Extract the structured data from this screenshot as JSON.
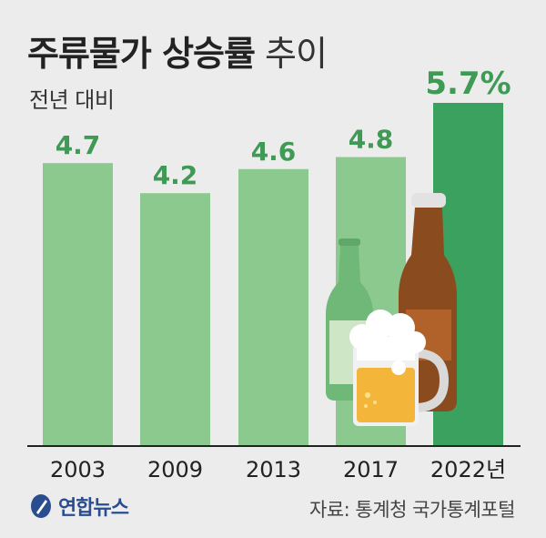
{
  "title_bold": "주류물가 상승률",
  "title_light": "추이",
  "subtitle": "전년 대비",
  "source": "자료: 통계청 국가통계포털",
  "brand": "연합뉴스",
  "colors": {
    "bar": "#8cc98f",
    "highlight": "#3aa25e",
    "label": "#3f9a55",
    "background": "#ececec"
  },
  "chart_data": {
    "type": "bar",
    "categories": [
      "2003",
      "2009",
      "2013",
      "2017",
      "2022년"
    ],
    "values": [
      4.7,
      4.2,
      4.6,
      4.8,
      5.7
    ],
    "value_labels": [
      "4.7",
      "4.2",
      "4.6",
      "4.8",
      "5.7%"
    ],
    "highlight_index": 4,
    "ylim": [
      0,
      5.7
    ],
    "title": "주류물가 상승률 추이",
    "subtitle": "전년 대비",
    "xlabel": "",
    "ylabel": ""
  }
}
